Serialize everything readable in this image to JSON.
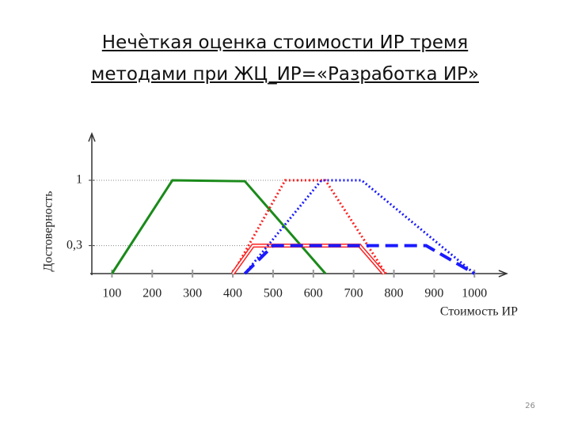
{
  "chart_data": {
    "type": "line",
    "title": "Нечѐткая оценка стоимости ИР тремя методами при ЖЦ_ИР=«Разработка ИР»",
    "x_label": "Стоимость ИР",
    "y_label": "Достоверность",
    "xlim": [
      50,
      1080
    ],
    "ylim": [
      0,
      1.5
    ],
    "xticks": [
      100,
      200,
      300,
      400,
      500,
      600,
      700,
      800,
      900,
      1000
    ],
    "yticks": [
      1,
      {
        "value": 0.3,
        "label": "0,3"
      }
    ],
    "grid": true,
    "series": [
      {
        "color": "#1a8a1a",
        "style": "solid",
        "x": [
          100,
          250,
          430,
          630
        ],
        "values": [
          0,
          1,
          0.99,
          0
        ]
      },
      {
        "color": "#ff2020",
        "style": "dotted",
        "x": [
          400,
          530,
          630,
          780
        ],
        "values": [
          0,
          1,
          1,
          0
        ]
      },
      {
        "color": "#ff2020",
        "style": "double",
        "x": [
          400,
          450,
          715,
          775
        ],
        "values": [
          0,
          0.3,
          0.3,
          0
        ]
      },
      {
        "color": "#1a1aff",
        "style": "dotted",
        "x": [
          430,
          620,
          720,
          1000
        ],
        "values": [
          0,
          1,
          1,
          0
        ]
      },
      {
        "color": "#1a1aff",
        "style": "dashed",
        "x": [
          430,
          500,
          880,
          1000
        ],
        "values": [
          0,
          0.3,
          0.3,
          0
        ]
      }
    ]
  },
  "page_number": "26"
}
